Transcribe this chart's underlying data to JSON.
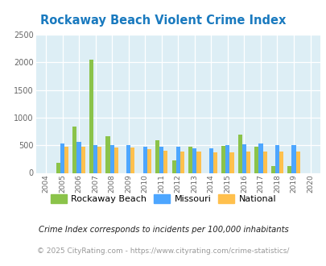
{
  "title": "Rockaway Beach Violent Crime Index",
  "years": [
    2004,
    2005,
    2006,
    2007,
    2008,
    2009,
    2010,
    2011,
    2012,
    2013,
    2014,
    2015,
    2016,
    2017,
    2018,
    2019,
    2020
  ],
  "rockaway": [
    0,
    175,
    840,
    2040,
    670,
    0,
    0,
    590,
    225,
    480,
    0,
    490,
    690,
    480,
    120,
    130,
    0
  ],
  "missouri": [
    0,
    530,
    560,
    500,
    500,
    500,
    480,
    480,
    480,
    440,
    450,
    500,
    520,
    530,
    500,
    500,
    0
  ],
  "national": [
    0,
    470,
    470,
    470,
    460,
    460,
    430,
    400,
    390,
    380,
    370,
    370,
    390,
    390,
    380,
    380,
    0
  ],
  "rockaway_color": "#8bc34a",
  "missouri_color": "#4da6ff",
  "national_color": "#ffc04d",
  "plot_bg": "#ddeef5",
  "title_color": "#1a7abf",
  "ylabel_max": 2500,
  "yticks": [
    0,
    500,
    1000,
    1500,
    2000,
    2500
  ],
  "legend_labels": [
    "Rockaway Beach",
    "Missouri",
    "National"
  ],
  "footnote1": "Crime Index corresponds to incidents per 100,000 inhabitants",
  "footnote2": "© 2025 CityRating.com - https://www.cityrating.com/crime-statistics/",
  "bar_width": 0.25
}
